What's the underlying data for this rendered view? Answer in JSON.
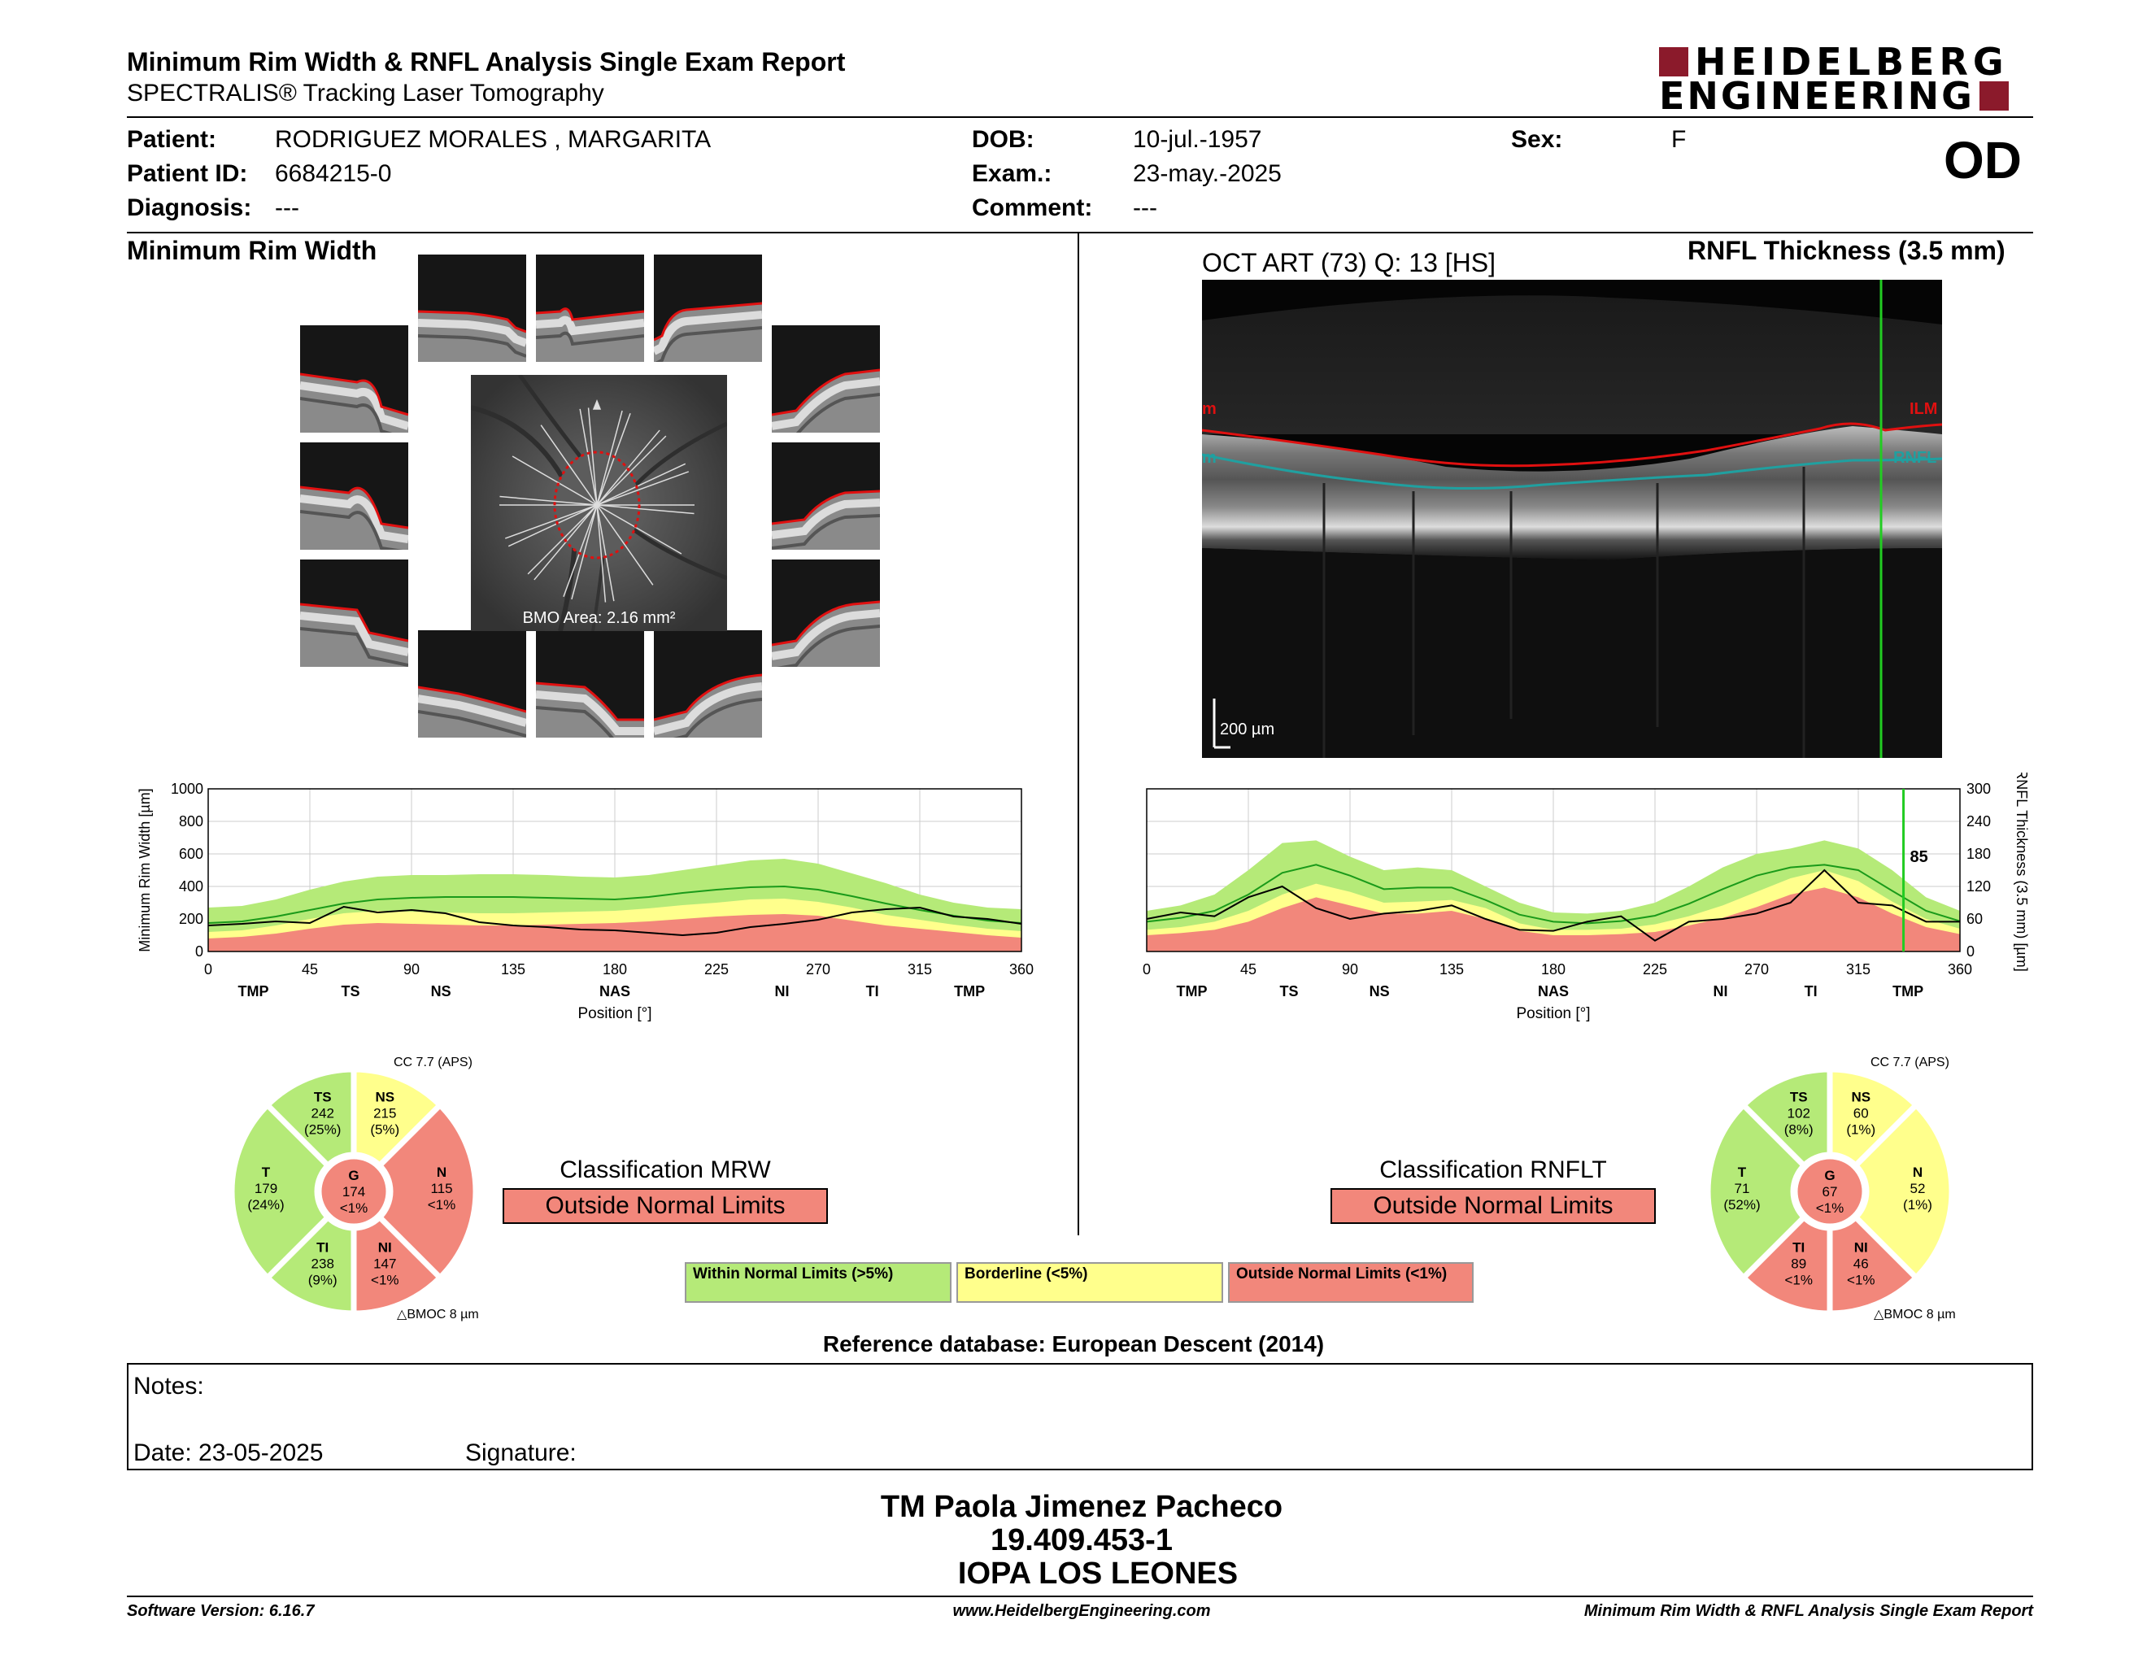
{
  "header": {
    "title": "Minimum Rim Width & RNFL Analysis Single Exam Report",
    "subtitle": "SPECTRALIS® Tracking Laser Tomography",
    "brand_line1": "HEIDELBERG",
    "brand_line2": "ENGINEERING",
    "eye": "OD"
  },
  "patient": {
    "patient_label": "Patient:",
    "patient_value": "RODRIGUEZ MORALES , MARGARITA",
    "id_label": "Patient ID:",
    "id_value": "6684215-0",
    "diagnosis_label": "Diagnosis:",
    "diagnosis_value": "---",
    "dob_label": "DOB:",
    "dob_value": "10-jul.-1957",
    "exam_label": "Exam.:",
    "exam_value": "23-may.-2025",
    "comment_label": "Comment:",
    "comment_value": "---",
    "sex_label": "Sex:",
    "sex_value": "F"
  },
  "mrw": {
    "section_title": "Minimum Rim Width",
    "bmo_area": "BMO Area: 2.16 mm²",
    "chart_ylabel": "Minimum Rim Width [µm]",
    "chart_xlabel": "Position [°]",
    "cc": "CC 7.7 (APS)",
    "bmoc": "BMOC 8 µm",
    "classification_title": "Classification MRW",
    "classification_value": "Outside Normal Limits",
    "sectors": {
      "TS": {
        "label": "TS",
        "value": "242",
        "pct": "(25%)",
        "status": "green"
      },
      "NS": {
        "label": "NS",
        "value": "215",
        "pct": "(5%)",
        "status": "yellow"
      },
      "N": {
        "label": "N",
        "value": "115",
        "pct": "<1%",
        "status": "red"
      },
      "NI": {
        "label": "NI",
        "value": "147",
        "pct": "<1%",
        "status": "red"
      },
      "TI": {
        "label": "TI",
        "value": "238",
        "pct": "(9%)",
        "status": "green"
      },
      "T": {
        "label": "T",
        "value": "179",
        "pct": "(24%)",
        "status": "green"
      },
      "G": {
        "label": "G",
        "value": "174",
        "pct": "<1%",
        "status": "red"
      }
    }
  },
  "rnfl": {
    "section_title": "RNFL Thickness (3.5 mm)",
    "scan_label": "OCT ART (73) Q: 13 [HS]",
    "ilm": "ILM",
    "rnfl_tag": "RNFL",
    "ilm_left": "m",
    "rnfl_left": "m",
    "scale": "200 µm",
    "chart_ylabel": "RNFL Thickness (3.5 mm) [µm]",
    "chart_xlabel": "Position [°]",
    "cursor_value": "85",
    "cc": "CC 7.7 (APS)",
    "bmoc": "BMOC 8 µm",
    "classification_title": "Classification RNFLT",
    "classification_value": "Outside Normal Limits",
    "sectors": {
      "TS": {
        "label": "TS",
        "value": "102",
        "pct": "(8%)",
        "status": "green"
      },
      "NS": {
        "label": "NS",
        "value": "60",
        "pct": "(1%)",
        "status": "yellow"
      },
      "N": {
        "label": "N",
        "value": "52",
        "pct": "(1%)",
        "status": "yellow"
      },
      "NI": {
        "label": "NI",
        "value": "46",
        "pct": "<1%",
        "status": "red"
      },
      "TI": {
        "label": "TI",
        "value": "89",
        "pct": "<1%",
        "status": "red"
      },
      "T": {
        "label": "T",
        "value": "71",
        "pct": "(52%)",
        "status": "green"
      },
      "G": {
        "label": "G",
        "value": "67",
        "pct": "<1%",
        "status": "red"
      }
    }
  },
  "legend": {
    "within": "Within Normal Limits (>5%)",
    "borderline": "Borderline (<5%)",
    "outside": "Outside Normal Limits (<1%)"
  },
  "reference": "Reference database: European Descent (2014)",
  "notes": {
    "notes_label": "Notes:",
    "date_label": "Date: 23-05-2025",
    "signature_label": "Signature:"
  },
  "signoff": {
    "name": "TM Paola Jimenez Pacheco",
    "id": "19.409.453-1",
    "institution": "IOPA LOS LEONES"
  },
  "footer": {
    "software": "Software Version: 6.16.7",
    "website": "www.HeidelbergEngineering.com",
    "report": "Minimum Rim Width & RNFL Analysis Single Exam Report"
  },
  "colors": {
    "green": "#b5ea78",
    "yellow": "#ffff8c",
    "red": "#f2877b",
    "brand": "#8b1a2b"
  },
  "chart_data": [
    {
      "type": "line",
      "ylabel": "Minimum Rim Width [µm]",
      "xlabel": "Position [°]",
      "xlim": [
        0,
        360
      ],
      "ylim": [
        0,
        1000
      ],
      "xticks": [
        0,
        45,
        90,
        135,
        180,
        225,
        270,
        315,
        360
      ],
      "yticks": [
        0,
        200,
        400,
        600,
        800,
        1000
      ],
      "sector_labels": [
        {
          "x": 20,
          "label": "TMP"
        },
        {
          "x": 63,
          "label": "TS"
        },
        {
          "x": 103,
          "label": "NS"
        },
        {
          "x": 180,
          "label": "NAS"
        },
        {
          "x": 254,
          "label": "NI"
        },
        {
          "x": 294,
          "label": "TI"
        },
        {
          "x": 337,
          "label": "TMP"
        }
      ],
      "x": [
        0,
        15,
        30,
        45,
        60,
        75,
        90,
        105,
        120,
        135,
        150,
        165,
        180,
        195,
        210,
        225,
        240,
        255,
        270,
        285,
        300,
        315,
        330,
        345,
        360
      ],
      "band_outside_upper": [
        80,
        90,
        110,
        140,
        165,
        175,
        170,
        165,
        160,
        160,
        165,
        170,
        175,
        185,
        200,
        215,
        225,
        230,
        220,
        190,
        160,
        140,
        120,
        100,
        85
      ],
      "band_borderline_upper": [
        120,
        130,
        160,
        200,
        235,
        250,
        245,
        240,
        235,
        235,
        240,
        245,
        250,
        265,
        285,
        300,
        320,
        325,
        305,
        270,
        225,
        195,
        165,
        140,
        125
      ],
      "band_within_upper": [
        270,
        280,
        320,
        380,
        430,
        460,
        470,
        470,
        475,
        475,
        470,
        460,
        455,
        470,
        500,
        530,
        560,
        570,
        540,
        480,
        420,
        350,
        300,
        270,
        260
      ],
      "normal_median": [
        175,
        185,
        215,
        255,
        295,
        320,
        330,
        335,
        335,
        335,
        330,
        325,
        320,
        335,
        360,
        380,
        395,
        400,
        380,
        340,
        295,
        255,
        220,
        190,
        175
      ],
      "patient": [
        160,
        170,
        185,
        175,
        275,
        240,
        255,
        235,
        180,
        160,
        150,
        135,
        130,
        115,
        100,
        115,
        150,
        170,
        195,
        240,
        260,
        270,
        215,
        200,
        170
      ]
    },
    {
      "type": "line",
      "ylabel": "RNFL Thickness (3.5 mm) [µm]",
      "xlabel": "Position [°]",
      "xlim": [
        0,
        360
      ],
      "ylim": [
        0,
        300
      ],
      "xticks": [
        0,
        45,
        90,
        135,
        180,
        225,
        270,
        315,
        360
      ],
      "yticks": [
        0,
        60,
        120,
        180,
        240,
        300
      ],
      "sector_labels": [
        {
          "x": 20,
          "label": "TMP"
        },
        {
          "x": 63,
          "label": "TS"
        },
        {
          "x": 103,
          "label": "NS"
        },
        {
          "x": 180,
          "label": "NAS"
        },
        {
          "x": 254,
          "label": "NI"
        },
        {
          "x": 294,
          "label": "TI"
        },
        {
          "x": 337,
          "label": "TMP"
        }
      ],
      "cursor_x": 335,
      "cursor_value": 85,
      "x": [
        0,
        15,
        30,
        45,
        60,
        75,
        90,
        105,
        120,
        135,
        150,
        165,
        180,
        195,
        210,
        225,
        240,
        255,
        270,
        285,
        300,
        315,
        330,
        345,
        360
      ],
      "band_outside_upper": [
        30,
        34,
        40,
        55,
        80,
        100,
        85,
        70,
        70,
        75,
        60,
        38,
        30,
        30,
        32,
        36,
        48,
        62,
        82,
        105,
        118,
        100,
        70,
        45,
        32
      ],
      "band_borderline_upper": [
        40,
        45,
        55,
        75,
        105,
        125,
        110,
        90,
        92,
        95,
        80,
        52,
        40,
        40,
        42,
        50,
        65,
        85,
        110,
        135,
        150,
        130,
        92,
        60,
        42
      ],
      "band_within_upper": [
        75,
        85,
        105,
        150,
        200,
        205,
        175,
        150,
        155,
        150,
        120,
        90,
        72,
        70,
        75,
        90,
        120,
        155,
        180,
        190,
        205,
        190,
        150,
        100,
        75
      ],
      "normal_median": [
        55,
        62,
        75,
        105,
        145,
        160,
        140,
        115,
        118,
        118,
        95,
        68,
        55,
        52,
        56,
        66,
        88,
        115,
        140,
        155,
        160,
        150,
        112,
        75,
        56
      ],
      "patient": [
        60,
        72,
        65,
        100,
        120,
        80,
        60,
        70,
        75,
        85,
        60,
        40,
        38,
        55,
        65,
        20,
        55,
        60,
        70,
        90,
        150,
        90,
        85,
        55,
        55
      ]
    }
  ]
}
